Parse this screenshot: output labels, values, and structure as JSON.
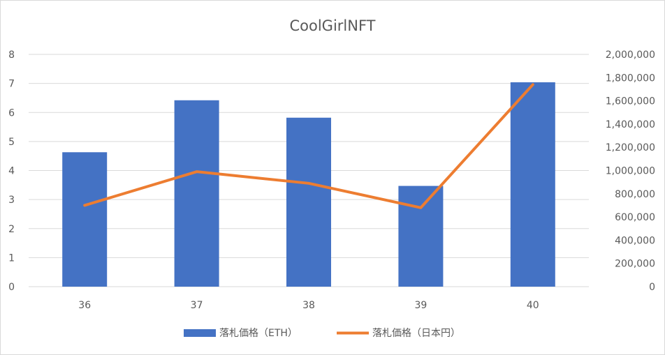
{
  "chart_data": {
    "type": "bar+line",
    "title": "CoolGirlNFT",
    "categories": [
      "36",
      "37",
      "38",
      "39",
      "40"
    ],
    "series": [
      {
        "name": "落札価格（ETH）",
        "type": "bar",
        "axis": "left",
        "color": "#4472C4",
        "values": [
          4.63,
          6.42,
          5.82,
          3.47,
          7.04
        ]
      },
      {
        "name": "落札価格（日本円）",
        "type": "line",
        "axis": "right",
        "color": "#ED7D31",
        "values": [
          700000,
          990000,
          890000,
          680000,
          1740000
        ]
      }
    ],
    "y_left": {
      "ylim": [
        0,
        8
      ],
      "ticks": [
        "0",
        "1",
        "2",
        "3",
        "4",
        "5",
        "6",
        "7",
        "8"
      ]
    },
    "y_right": {
      "ylim": [
        0,
        2000000
      ],
      "ticks": [
        "0",
        "200,000",
        "400,000",
        "600,000",
        "800,000",
        "1,000,000",
        "1,200,000",
        "1,400,000",
        "1,600,000",
        "1,800,000",
        "2,000,000"
      ]
    },
    "grid": true,
    "legend_position": "bottom"
  }
}
